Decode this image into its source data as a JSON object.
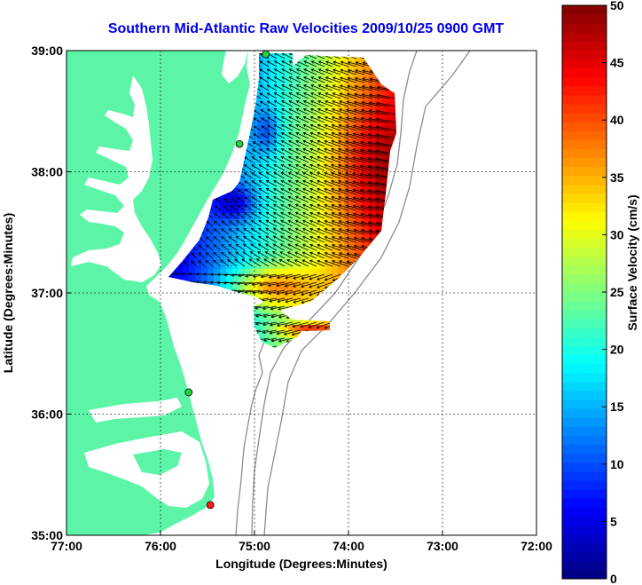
{
  "colors": {
    "land": "#5cf5a8",
    "water": "#ffffff",
    "title": "#0000ee",
    "bathymetry": "#8c8c8c",
    "station_green": "#22d33a",
    "station_red": "#ff1a1a"
  },
  "chart_data": {
    "type": "heatmap",
    "title": "Southern Mid-Atlantic Raw Velocities 2009/10/25 0900 GMT",
    "xlabel": "Longitude (Degrees:Minutes)",
    "ylabel": "Latitude (Degrees:Minutes)",
    "xlim": [
      -77,
      -72
    ],
    "ylim": [
      35,
      39
    ],
    "x_ticks": [
      {
        "value": -77,
        "label": "77:00"
      },
      {
        "value": -76,
        "label": "76:00"
      },
      {
        "value": -75,
        "label": "75:00"
      },
      {
        "value": -74,
        "label": "74:00"
      },
      {
        "value": -73,
        "label": "73:00"
      },
      {
        "value": -72,
        "label": "72:00"
      }
    ],
    "y_ticks": [
      {
        "value": 35,
        "label": "35:00"
      },
      {
        "value": 36,
        "label": "36:00"
      },
      {
        "value": 37,
        "label": "37:00"
      },
      {
        "value": 38,
        "label": "38:00"
      },
      {
        "value": 39,
        "label": "39:00"
      }
    ],
    "grid": true,
    "colorbar": {
      "label": "Surface Velocity (cm/s)",
      "min": 0,
      "max": 50,
      "ticks": [
        0,
        5,
        10,
        15,
        20,
        25,
        30,
        35,
        40,
        45,
        50
      ],
      "colormap": "jet"
    },
    "stations": [
      {
        "lon": -74.88,
        "lat": 38.97,
        "color": "green"
      },
      {
        "lon": -75.16,
        "lat": 38.23,
        "color": "green"
      },
      {
        "lon": -75.7,
        "lat": 36.18,
        "color": "green"
      },
      {
        "lon": -75.47,
        "lat": 35.25,
        "color": "red"
      }
    ]
  }
}
